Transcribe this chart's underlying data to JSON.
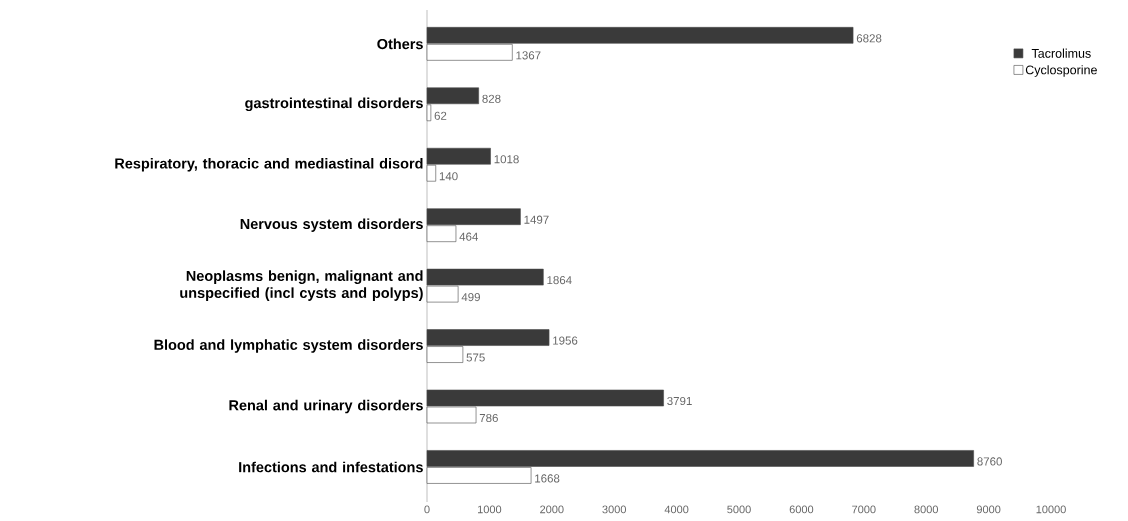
{
  "chart_data": {
    "type": "bar",
    "orientation": "horizontal",
    "categories": [
      "Others",
      "gastrointestinal disorders",
      "Respiratory, thoracic and mediastinal disord",
      "Nervous system disorders",
      "Neoplasms benign, malignant and unspecified (incl cysts and polyps)",
      "Blood and lymphatic system disorders",
      "Renal and urinary disorders",
      "Infections and infestations"
    ],
    "series": [
      {
        "name": "Tacrolimus",
        "color": "#3a3a3a",
        "values": [
          6828,
          828,
          1018,
          1497,
          1864,
          1956,
          3791,
          8760
        ]
      },
      {
        "name": "Cyclosporine",
        "color": "#ffffff",
        "values": [
          1367,
          62,
          140,
          464,
          499,
          575,
          786,
          1668
        ]
      }
    ],
    "xlim": [
      0,
      10000
    ],
    "xticks": [
      0,
      1000,
      2000,
      3000,
      4000,
      5000,
      6000,
      7000,
      8000,
      9000,
      10000
    ],
    "data_labels": true,
    "legend": "top right",
    "grid": false
  }
}
